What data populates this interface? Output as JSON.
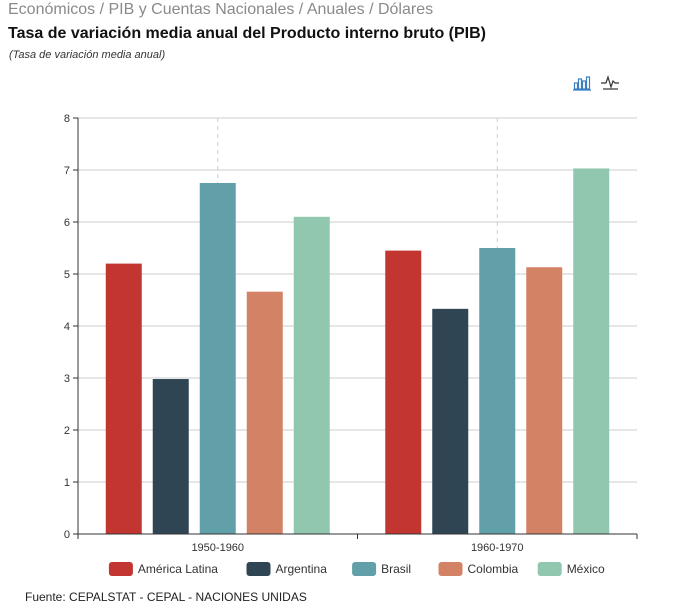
{
  "breadcrumb": "Económicos / PIB y Cuentas Nacionales / Anuales / Dólares",
  "title": "Tasa de variación media anual del Producto interno bruto (PIB)",
  "subtitle": "(Tasa de variación media anual)",
  "toolbar": {
    "bar_icon": "bar-chart-icon",
    "line_icon": "line-chart-icon",
    "accent_color": "#3a7fc1"
  },
  "source": "Fuente: CEPALSTAT - CEPAL - NACIONES UNIDAS",
  "chart_data": {
    "type": "bar",
    "title": "",
    "xlabel": "",
    "ylabel": "",
    "categories": [
      "1950-1960",
      "1960-1970"
    ],
    "ylim": [
      0,
      8
    ],
    "yticks": [
      0,
      1,
      2,
      3,
      4,
      5,
      6,
      7,
      8
    ],
    "grid": true,
    "legend_position": "bottom",
    "series": [
      {
        "name": "América Latina",
        "color": "#c23531",
        "values": [
          5.2,
          5.45
        ]
      },
      {
        "name": "Argentina",
        "color": "#2f4554",
        "values": [
          2.98,
          4.33
        ]
      },
      {
        "name": "Brasil",
        "color": "#61a0a8",
        "values": [
          6.75,
          5.5
        ]
      },
      {
        "name": "Colombia",
        "color": "#d48265",
        "values": [
          4.66,
          5.13
        ]
      },
      {
        "name": "México",
        "color": "#91c7ae",
        "values": [
          6.1,
          7.03
        ]
      }
    ]
  }
}
